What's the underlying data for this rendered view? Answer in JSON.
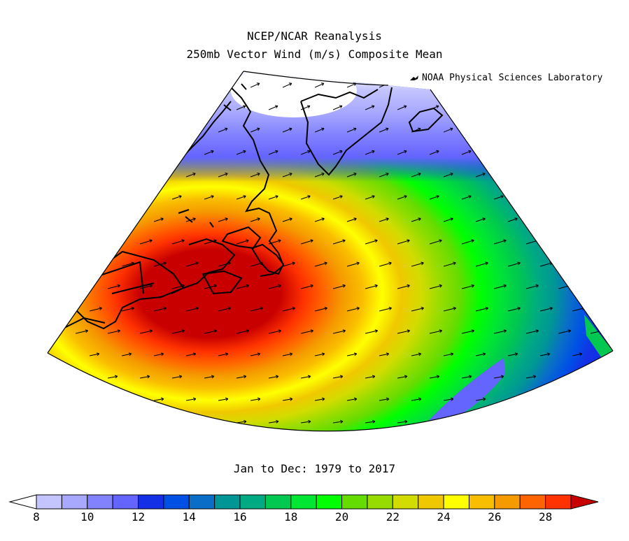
{
  "header": {
    "title_line1": "NCEP/NCAR Reanalysis",
    "title_line2": "250mb Vector Wind (m/s) Composite Mean",
    "credit": "NOAA Physical Sciences Laboratory",
    "credit_icon": "noaa-logo-icon"
  },
  "footer": {
    "period": "Jan to Dec: 1979 to 2017"
  },
  "map": {
    "projection": "conic",
    "variable": "vector wind speed (m/s)",
    "region_features": [
      "Greenland",
      "Iceland",
      "Labrador",
      "Newfoundland",
      "Nova Scotia",
      "New England",
      "North Atlantic"
    ],
    "jet_core_max_class": ">28"
  },
  "colorbar": {
    "ticks": [
      "8",
      "10",
      "12",
      "14",
      "16",
      "18",
      "20",
      "22",
      "24",
      "26",
      "28"
    ],
    "colors": [
      "#ffffff",
      "#c4c4ff",
      "#a8a8ff",
      "#8282ff",
      "#6464ff",
      "#1430e6",
      "#0050e6",
      "#0a6ec8",
      "#009696",
      "#00aa82",
      "#00c850",
      "#00e632",
      "#00ff00",
      "#64dc00",
      "#96dc00",
      "#d2dc00",
      "#f0c800",
      "#ffff00",
      "#fabe00",
      "#f59b00",
      "#ff6400",
      "#ff3200",
      "#c80000"
    ]
  }
}
